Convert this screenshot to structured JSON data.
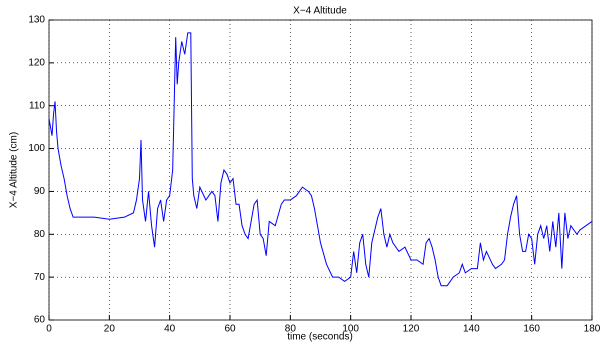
{
  "chart_data": {
    "type": "line",
    "title": "X−4 Altitude",
    "x_label": "time (seconds)",
    "y_label": "X−4 Altitude (cm)",
    "x": [
      0,
      1,
      1.5,
      2,
      2.5,
      3,
      4,
      5,
      6,
      7,
      8,
      10,
      15,
      20,
      25,
      28,
      29,
      30,
      30.5,
      31,
      32,
      33,
      34,
      35,
      36,
      37,
      38,
      39,
      40,
      41,
      42,
      42.5,
      43,
      44,
      45,
      46,
      47,
      47.5,
      48,
      49,
      50,
      52,
      54,
      55,
      56,
      57,
      58,
      59,
      60,
      61,
      62,
      63,
      64,
      65,
      66,
      67,
      68,
      69,
      70,
      71,
      72,
      73,
      75,
      77,
      78,
      80,
      82,
      84,
      86,
      87,
      88,
      89,
      90,
      92,
      94,
      96,
      98,
      100,
      101,
      102,
      103,
      104,
      105,
      106,
      107,
      108,
      109,
      110,
      111,
      112,
      113,
      114,
      116,
      118,
      120,
      122,
      124,
      125,
      126,
      127,
      128,
      129,
      130,
      132,
      134,
      136,
      137,
      138,
      140,
      142,
      143,
      144,
      145,
      147,
      148,
      150,
      151,
      152,
      153,
      154,
      155,
      156,
      157,
      158,
      159,
      160,
      161,
      162,
      163,
      164,
      165,
      166,
      167,
      168,
      169,
      170,
      171,
      172,
      173,
      175,
      176,
      178,
      180
    ],
    "series": [
      {
        "name": "altitude",
        "color": "#0000ff",
        "values": [
          107,
          103,
          108,
          111,
          104,
          100,
          96,
          93,
          89,
          86,
          84,
          84,
          84,
          83.5,
          84,
          85,
          88,
          93,
          102,
          88,
          83,
          90,
          82,
          77,
          86,
          88,
          83,
          88,
          89,
          95,
          126,
          115,
          120,
          125,
          122,
          127,
          127,
          93,
          89,
          86,
          91,
          88,
          90,
          89,
          83,
          92,
          95,
          94,
          92,
          93,
          87,
          87,
          82,
          80,
          79,
          83,
          87,
          88,
          80,
          79,
          75,
          83,
          82,
          87,
          88,
          88,
          89,
          91,
          90,
          89,
          86,
          82,
          78,
          73,
          70,
          70,
          69,
          70,
          76,
          71,
          78,
          80,
          73,
          70,
          78,
          81,
          84,
          86,
          80,
          77,
          80,
          78,
          76,
          77,
          74,
          74,
          73,
          78,
          79,
          77,
          74,
          70,
          68,
          68,
          70,
          71,
          73,
          71,
          72,
          72,
          78,
          74,
          76,
          73,
          72,
          73,
          74,
          80,
          84,
          87,
          89,
          80,
          76,
          76,
          80,
          79,
          73,
          80,
          82,
          79,
          82,
          76,
          83,
          77,
          85,
          72,
          85,
          79,
          82,
          80,
          81,
          82,
          83
        ]
      }
    ],
    "xlim": [
      0,
      180
    ],
    "ylim": [
      60,
      130
    ],
    "xticks": [
      0,
      20,
      40,
      60,
      80,
      100,
      120,
      140,
      160,
      180
    ],
    "yticks": [
      60,
      70,
      80,
      90,
      100,
      110,
      120,
      130
    ],
    "grid": true
  }
}
